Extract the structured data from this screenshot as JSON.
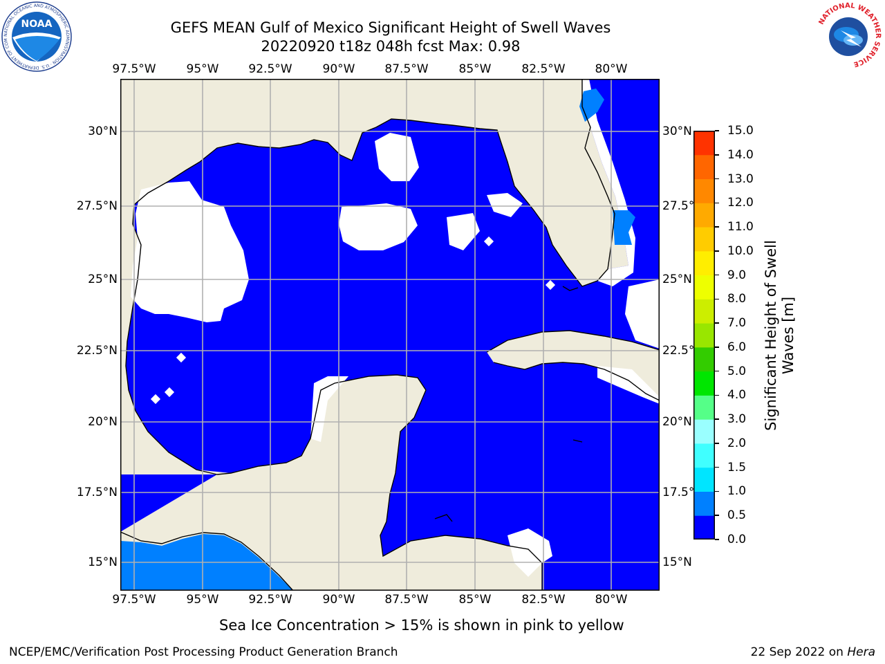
{
  "header": {
    "title_line1": "GEFS MEAN Gulf of Mexico Significant Height of Swell Waves",
    "title_line2": "20220920 t18z 048h fcst   Max: 0.98"
  },
  "map": {
    "lon_labels": [
      "97.5°W",
      "95°W",
      "92.5°W",
      "90°W",
      "87.5°W",
      "85°W",
      "82.5°W",
      "80°W"
    ],
    "lat_labels": [
      "30°N",
      "27.5°N",
      "25°N",
      "22.5°N",
      "20°N",
      "17.5°N",
      "15°N"
    ],
    "colors": {
      "land": "#efecdc",
      "ocean": "#0000ff",
      "no_data": "#ffffff",
      "swell_0_5": "#0080ff",
      "grid": "#b0b0b0"
    }
  },
  "colorbar": {
    "label_line1": "Significant Height of Swell",
    "label_line2": "Waves [m]",
    "ticks": [
      "15.0",
      "14.0",
      "13.0",
      "12.0",
      "11.0",
      "10.0",
      "9.0",
      "8.0",
      "7.0",
      "6.0",
      "5.0",
      "4.0",
      "3.0",
      "2.0",
      "1.5",
      "1.0",
      "0.5",
      "0.0"
    ],
    "colors": [
      "#0000ff",
      "#0080ff",
      "#00e5ff",
      "#40ffff",
      "#9affff",
      "#55ff88",
      "#00e600",
      "#33cc00",
      "#99e600",
      "#ccee00",
      "#eeff00",
      "#ffee00",
      "#ffcc00",
      "#ffaa00",
      "#ff8800",
      "#ff6600",
      "#ff3300"
    ]
  },
  "note": "Sea Ice Concentration > 15% is shown in pink to yellow",
  "footer": {
    "left": "NCEP/EMC/Verification Post Processing Product Generation Branch",
    "date": "22 Sep 2022 on ",
    "host": "Hera"
  },
  "logos": {
    "noaa_text": "NOAA",
    "noaa_ring_text": "NATIONAL OCEANIC AND ATMOSPHERIC ADMINISTRATION · U.S. DEPARTMENT OF COMMERCE",
    "nws_ring_text": "NATIONAL WEATHER SERVICE"
  }
}
